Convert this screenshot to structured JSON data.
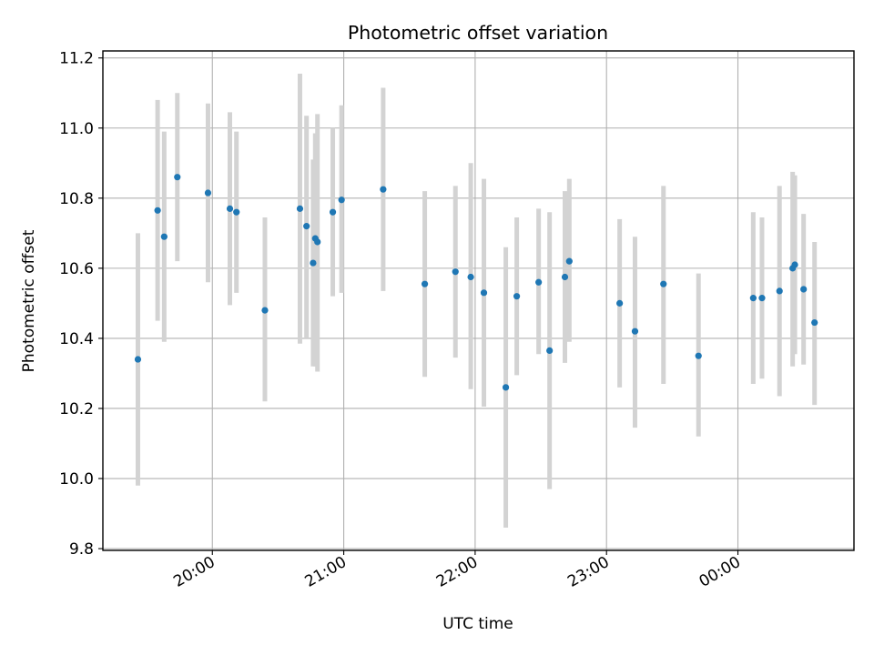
{
  "chart_data": {
    "type": "scatter",
    "title": "Photometric offset variation",
    "xlabel": "UTC time",
    "ylabel": "Photometric offset",
    "x_axis": {
      "kind": "time",
      "min": "19:10",
      "max": "00:53",
      "tick_labels": [
        "20:00",
        "21:00",
        "22:00",
        "23:00",
        "00:00"
      ]
    },
    "y_axis": {
      "min": 9.795,
      "max": 11.22,
      "tick_labels": [
        "9.8",
        "10.0",
        "10.2",
        "10.4",
        "10.6",
        "10.8",
        "11.0",
        "11.2"
      ]
    },
    "grid": true,
    "marker_color": "#1f77b4",
    "errorbar_color": "#d3d3d3",
    "points": [
      {
        "t": "19:26",
        "y": 10.34,
        "lo": 9.98,
        "hi": 10.7
      },
      {
        "t": "19:35",
        "y": 10.765,
        "lo": 10.45,
        "hi": 11.08
      },
      {
        "t": "19:38",
        "y": 10.69,
        "lo": 10.39,
        "hi": 10.99
      },
      {
        "t": "19:44",
        "y": 10.86,
        "lo": 10.62,
        "hi": 11.1
      },
      {
        "t": "19:58",
        "y": 10.815,
        "lo": 10.56,
        "hi": 11.07
      },
      {
        "t": "20:08",
        "y": 10.77,
        "lo": 10.495,
        "hi": 11.045
      },
      {
        "t": "20:11",
        "y": 10.76,
        "lo": 10.53,
        "hi": 10.99
      },
      {
        "t": "20:24",
        "y": 10.48,
        "lo": 10.22,
        "hi": 10.745
      },
      {
        "t": "20:40",
        "y": 10.77,
        "lo": 10.385,
        "hi": 11.155
      },
      {
        "t": "20:43",
        "y": 10.72,
        "lo": 10.4,
        "hi": 11.035
      },
      {
        "t": "20:46",
        "y": 10.615,
        "lo": 10.32,
        "hi": 10.91
      },
      {
        "t": "20:47",
        "y": 10.685,
        "lo": 10.32,
        "hi": 10.985
      },
      {
        "t": "20:48",
        "y": 10.675,
        "lo": 10.305,
        "hi": 11.04
      },
      {
        "t": "20:55",
        "y": 10.76,
        "lo": 10.52,
        "hi": 11.0
      },
      {
        "t": "20:59",
        "y": 10.795,
        "lo": 10.53,
        "hi": 11.065
      },
      {
        "t": "21:18",
        "y": 10.825,
        "lo": 10.535,
        "hi": 11.115
      },
      {
        "t": "21:37",
        "y": 10.555,
        "lo": 10.29,
        "hi": 10.82
      },
      {
        "t": "21:51",
        "y": 10.59,
        "lo": 10.345,
        "hi": 10.835
      },
      {
        "t": "21:58",
        "y": 10.575,
        "lo": 10.255,
        "hi": 10.9
      },
      {
        "t": "22:04",
        "y": 10.53,
        "lo": 10.205,
        "hi": 10.855
      },
      {
        "t": "22:14",
        "y": 10.26,
        "lo": 9.86,
        "hi": 10.66
      },
      {
        "t": "22:19",
        "y": 10.52,
        "lo": 10.295,
        "hi": 10.745
      },
      {
        "t": "22:29",
        "y": 10.56,
        "lo": 10.355,
        "hi": 10.77
      },
      {
        "t": "22:34",
        "y": 10.365,
        "lo": 9.97,
        "hi": 10.76
      },
      {
        "t": "22:41",
        "y": 10.575,
        "lo": 10.33,
        "hi": 10.82
      },
      {
        "t": "22:43",
        "y": 10.62,
        "lo": 10.39,
        "hi": 10.855
      },
      {
        "t": "23:06",
        "y": 10.5,
        "lo": 10.26,
        "hi": 10.74
      },
      {
        "t": "23:13",
        "y": 10.42,
        "lo": 10.145,
        "hi": 10.69
      },
      {
        "t": "23:26",
        "y": 10.555,
        "lo": 10.27,
        "hi": 10.835
      },
      {
        "t": "23:42",
        "y": 10.35,
        "lo": 10.12,
        "hi": 10.585
      },
      {
        "t": "00:07",
        "y": 10.515,
        "lo": 10.27,
        "hi": 10.76
      },
      {
        "t": "00:11",
        "y": 10.515,
        "lo": 10.285,
        "hi": 10.745
      },
      {
        "t": "00:19",
        "y": 10.535,
        "lo": 10.235,
        "hi": 10.835
      },
      {
        "t": "00:25",
        "y": 10.6,
        "lo": 10.32,
        "hi": 10.875
      },
      {
        "t": "00:26",
        "y": 10.61,
        "lo": 10.355,
        "hi": 10.865
      },
      {
        "t": "00:30",
        "y": 10.54,
        "lo": 10.325,
        "hi": 10.755
      },
      {
        "t": "00:35",
        "y": 10.445,
        "lo": 10.21,
        "hi": 10.675
      }
    ]
  }
}
